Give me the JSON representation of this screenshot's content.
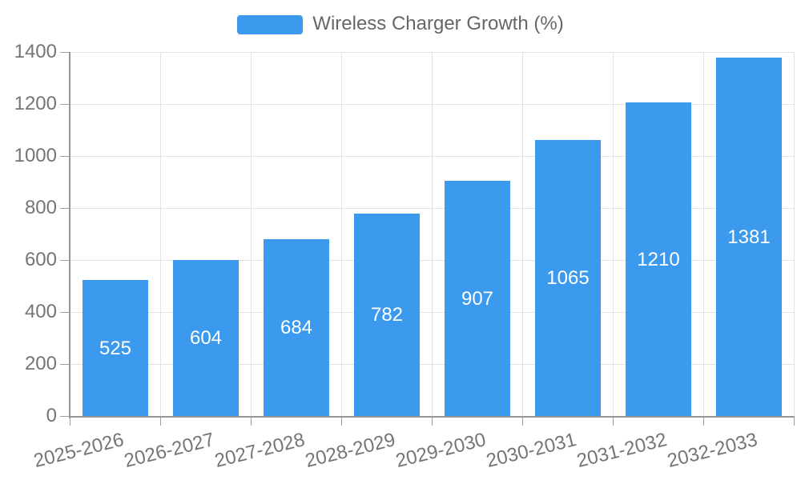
{
  "legend": {
    "label": "Wireless Charger Growth (%)"
  },
  "chart_data": {
    "type": "bar",
    "title": "Wireless Charger Growth (%)",
    "categories": [
      "2025-2026",
      "2026-2027",
      "2027-2028",
      "2028-2029",
      "2029-2030",
      "2030-2031",
      "2031-2032",
      "2032-2033"
    ],
    "series": [
      {
        "name": "Wireless Charger Growth (%)",
        "values": [
          525,
          604,
          684,
          782,
          907,
          1065,
          1210,
          1381
        ]
      }
    ],
    "value_labels": [
      "525",
      "604",
      "684",
      "782",
      "907",
      "1065",
      "1210",
      "1381"
    ],
    "ytick_labels": [
      "0",
      "200",
      "400",
      "600",
      "800",
      "1000",
      "1200",
      "1400"
    ],
    "xlabel": "",
    "ylabel": "",
    "ylim": [
      0,
      1400
    ],
    "ytick_step": 200,
    "grid": true,
    "legend_position": "top-center",
    "colors": {
      "bar": "#3B99EE",
      "value_label": "#FFFFFF",
      "axis": "#949494",
      "tick": "#9E9E9E",
      "grid": "#E2E2E2",
      "axis_label": "#757575",
      "legend_text": "#666666"
    }
  }
}
